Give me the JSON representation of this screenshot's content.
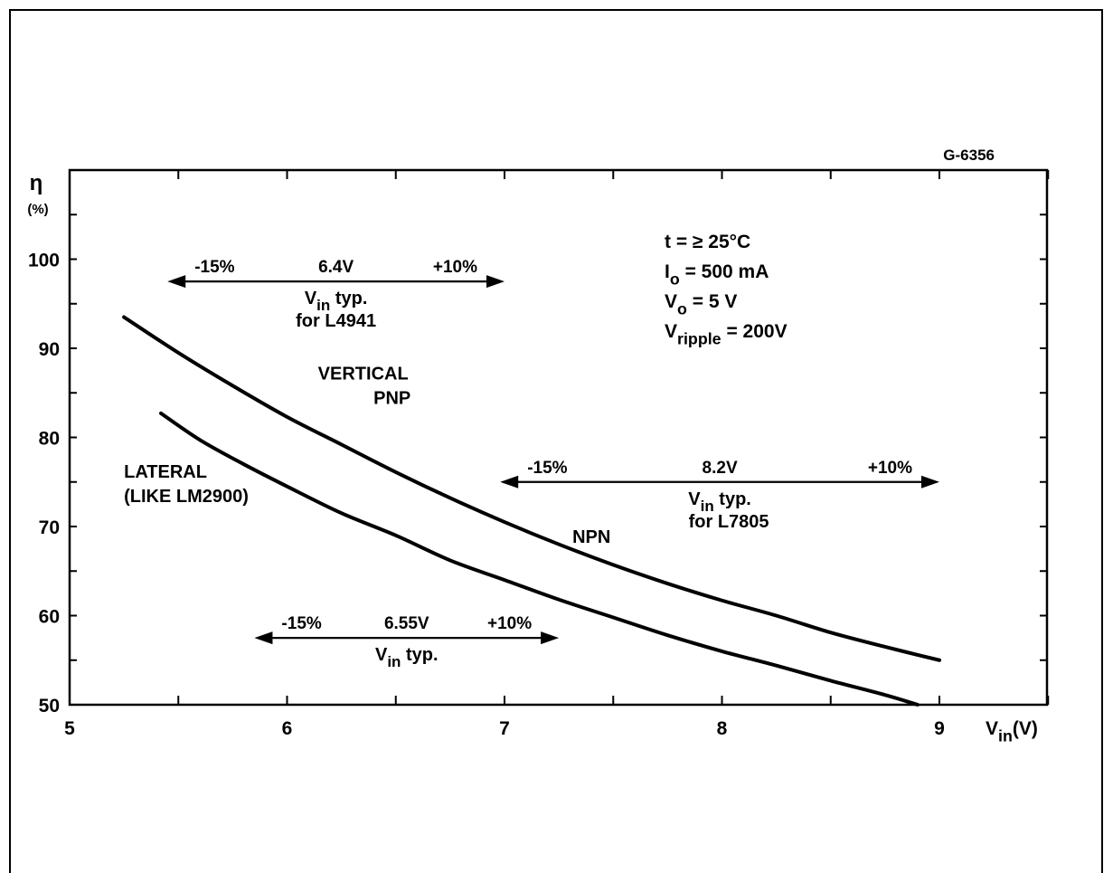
{
  "chart_data": {
    "type": "line",
    "code": "G-6356",
    "ylabel": "η",
    "yunit": "(%)",
    "xlabel_main": "V",
    "xlabel_sub": "in",
    "xlabel_unit": "(V)",
    "xlim": [
      5,
      9.5
    ],
    "ylim": [
      50,
      110
    ],
    "x_ticks": [
      "5",
      "6",
      "7",
      "8",
      "9"
    ],
    "y_ticks": [
      "50",
      "60",
      "70",
      "80",
      "90",
      "100"
    ],
    "x_tick_values": [
      5,
      6,
      7,
      8,
      9
    ],
    "y_tick_values": [
      50,
      60,
      70,
      80,
      90,
      100
    ],
    "series": [
      {
        "x": [
          5.25,
          5.5,
          5.75,
          6.0,
          6.25,
          6.5,
          6.75,
          7.0,
          7.25,
          7.5,
          7.75,
          8.0,
          8.25,
          8.5,
          8.75,
          9.0
        ],
        "values": [
          93.5,
          89.5,
          85.8,
          82.3,
          79.2,
          76.1,
          73.2,
          70.5,
          68.0,
          65.7,
          63.6,
          61.7,
          60.0,
          58.1,
          56.5,
          55.0
        ]
      },
      {
        "x": [
          5.42,
          5.6,
          5.8,
          6.0,
          6.25,
          6.5,
          6.75,
          7.0,
          7.25,
          7.5,
          7.75,
          8.0,
          8.25,
          8.5,
          8.75,
          8.9
        ],
        "values": [
          82.7,
          79.7,
          77.0,
          74.5,
          71.5,
          69.0,
          66.2,
          64.0,
          61.8,
          59.8,
          57.8,
          56.0,
          54.4,
          52.7,
          51.1,
          50.0
        ]
      }
    ],
    "curve_labels": [
      {
        "lines": [
          "VERTICAL",
          "PNP"
        ],
        "x": 6.35,
        "y": 86.5,
        "align": "middle"
      },
      {
        "lines": [
          "LATERAL",
          "(LIKE LM2900)"
        ],
        "x": 5.25,
        "y": 75.5,
        "align": "start"
      }
    ],
    "range_arrows": [
      {
        "from": 5.45,
        "to": 7.0,
        "y": 97.5,
        "left_label": "-15%",
        "center_label": "6.4V",
        "right_label": "+10%",
        "sub_label": "V",
        "sub_label_sub": "in",
        "sub_label_rest": " typ.",
        "sub_label2": "for L4941"
      },
      {
        "from": 5.85,
        "to": 7.25,
        "y": 57.5,
        "left_label": "-15%",
        "center_label": "6.55V",
        "right_label": "+10%",
        "sub_label": "V",
        "sub_label_sub": "in",
        "sub_label_rest": " typ.",
        "sub_label2": ""
      },
      {
        "from": 6.98,
        "to": 9.0,
        "y": 75.0,
        "left_label": "-15%",
        "center_label": "8.2V",
        "right_label": "+10%",
        "sub_label": "V",
        "sub_label_sub": "in",
        "sub_label_rest": " typ.",
        "sub_label2": "for L7805"
      }
    ],
    "npn_label": "NPN",
    "conditions": [
      {
        "main": "t",
        "sub": "",
        "rest": " = ≥ 25°C"
      },
      {
        "main": "I",
        "sub": "o",
        "rest": " = 500 mA"
      },
      {
        "main": "V",
        "sub": "o",
        "rest": " = 5 V"
      },
      {
        "main": "V",
        "sub": "ripple",
        "rest": " = 200V"
      }
    ]
  }
}
